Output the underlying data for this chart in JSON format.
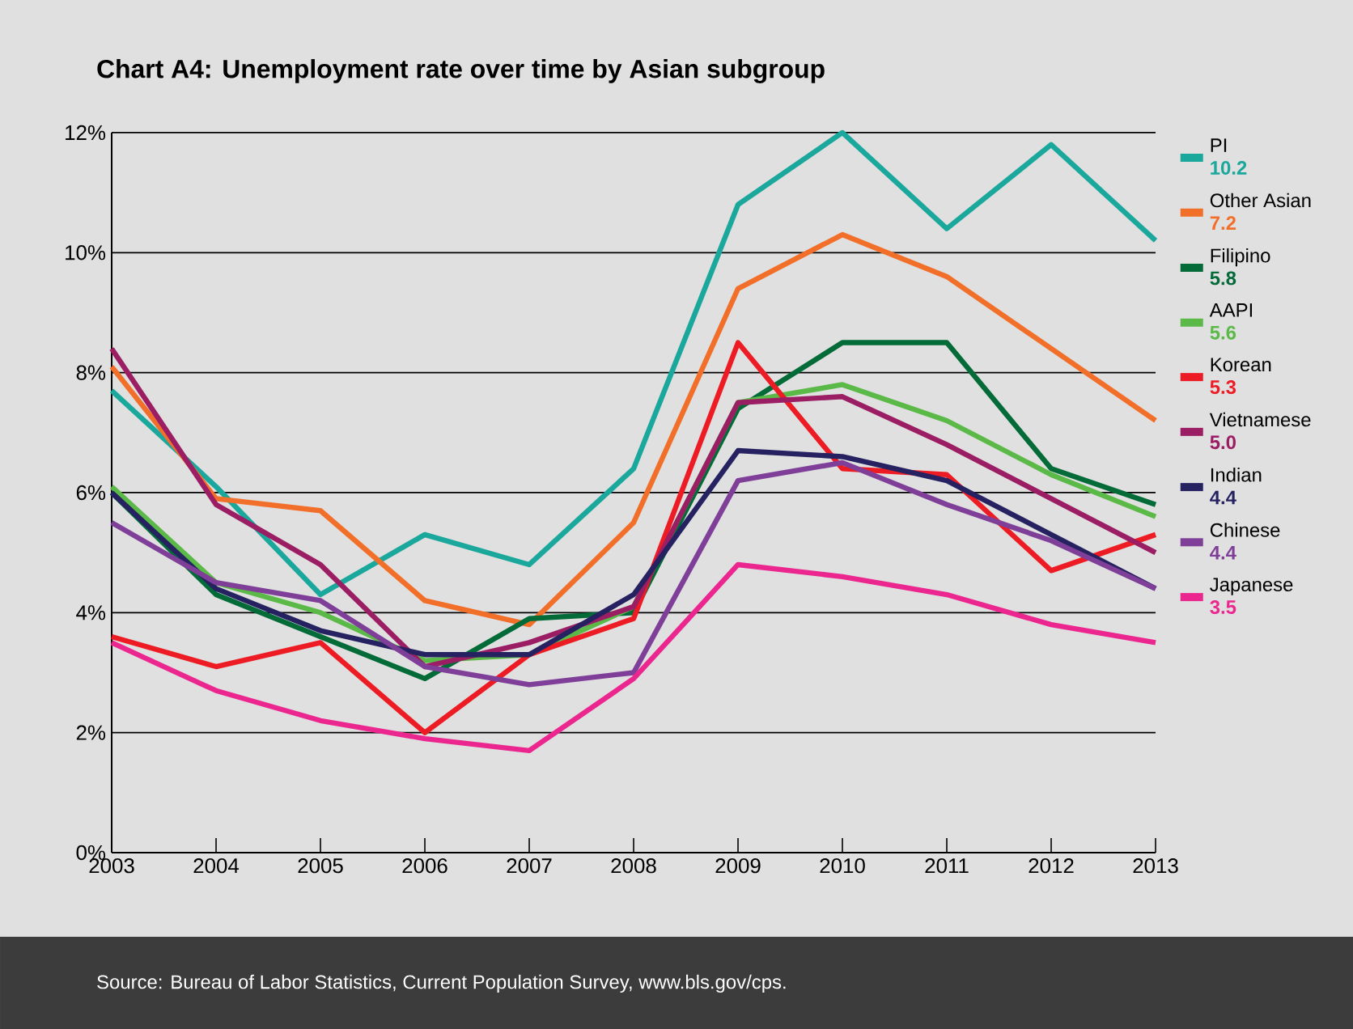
{
  "chart_data": {
    "type": "line",
    "title": "Chart A4: Unemployment rate over time by Asian subgroup",
    "x": [
      2003,
      2004,
      2005,
      2006,
      2007,
      2008,
      2009,
      2010,
      2011,
      2012,
      2013
    ],
    "xlim": [
      2003,
      2013
    ],
    "xticks": [
      2003,
      2004,
      2005,
      2006,
      2007,
      2008,
      2009,
      2010,
      2011,
      2012,
      2013
    ],
    "ylim": [
      0,
      12
    ],
    "yticks": [
      {
        "value": 0,
        "label": "0%"
      },
      {
        "value": 2,
        "label": "2%"
      },
      {
        "value": 4,
        "label": "4%"
      },
      {
        "value": 6,
        "label": "6%"
      },
      {
        "value": 8,
        "label": "8%"
      },
      {
        "value": 10,
        "label": "10%"
      },
      {
        "value": 12,
        "label": "12%"
      }
    ],
    "grid": "y",
    "legend": "right",
    "marker": "none",
    "line_style": "solid",
    "series": [
      {
        "name": "PI",
        "color": "#1aa79c",
        "values": [
          7.7,
          6.1,
          4.3,
          5.3,
          4.8,
          6.4,
          10.8,
          12.0,
          10.4,
          11.8,
          10.2
        ]
      },
      {
        "name": "Other Asian",
        "color": "#f26f2a",
        "values": [
          8.1,
          5.9,
          5.7,
          4.2,
          3.8,
          5.5,
          9.4,
          10.3,
          9.6,
          8.4,
          7.2
        ]
      },
      {
        "name": "Filipino",
        "color": "#036b37",
        "values": [
          6.0,
          4.3,
          3.6,
          2.9,
          3.9,
          4.0,
          7.4,
          8.5,
          8.5,
          6.4,
          5.8
        ]
      },
      {
        "name": "AAPI",
        "color": "#5bb947",
        "values": [
          6.1,
          4.5,
          4.0,
          3.2,
          3.3,
          4.1,
          7.5,
          7.8,
          7.2,
          6.3,
          5.6
        ]
      },
      {
        "name": "Korean",
        "color": "#ed1c24",
        "values": [
          3.6,
          3.1,
          3.5,
          2.0,
          3.3,
          3.9,
          8.5,
          6.4,
          6.3,
          4.7,
          5.3
        ]
      },
      {
        "name": "Vietnamese",
        "color": "#9b1d63",
        "values": [
          8.4,
          5.8,
          4.8,
          3.1,
          3.5,
          4.1,
          7.5,
          7.6,
          6.8,
          5.9,
          5.0
        ]
      },
      {
        "name": "Indian",
        "color": "#262262",
        "values": [
          6.0,
          4.4,
          3.7,
          3.3,
          3.3,
          4.3,
          6.7,
          6.6,
          6.2,
          5.3,
          4.4
        ]
      },
      {
        "name": "Chinese",
        "color": "#7f3f98",
        "values": [
          5.5,
          4.5,
          4.2,
          3.1,
          2.8,
          3.0,
          6.2,
          6.5,
          5.8,
          5.2,
          4.4
        ]
      },
      {
        "name": "Japanese",
        "color": "#ec268f",
        "values": [
          3.5,
          2.7,
          2.2,
          1.9,
          1.7,
          2.9,
          4.8,
          4.6,
          4.3,
          3.8,
          3.5
        ]
      }
    ],
    "annotations": [
      "Source: Bureau of Labor Statistics, Current Population Survey, www.bls.gov/cps.",
      "10.2",
      "7.2",
      "5.8",
      "5.6",
      "5.3",
      "5.0",
      "4.4",
      "4.4",
      "3.5"
    ]
  }
}
